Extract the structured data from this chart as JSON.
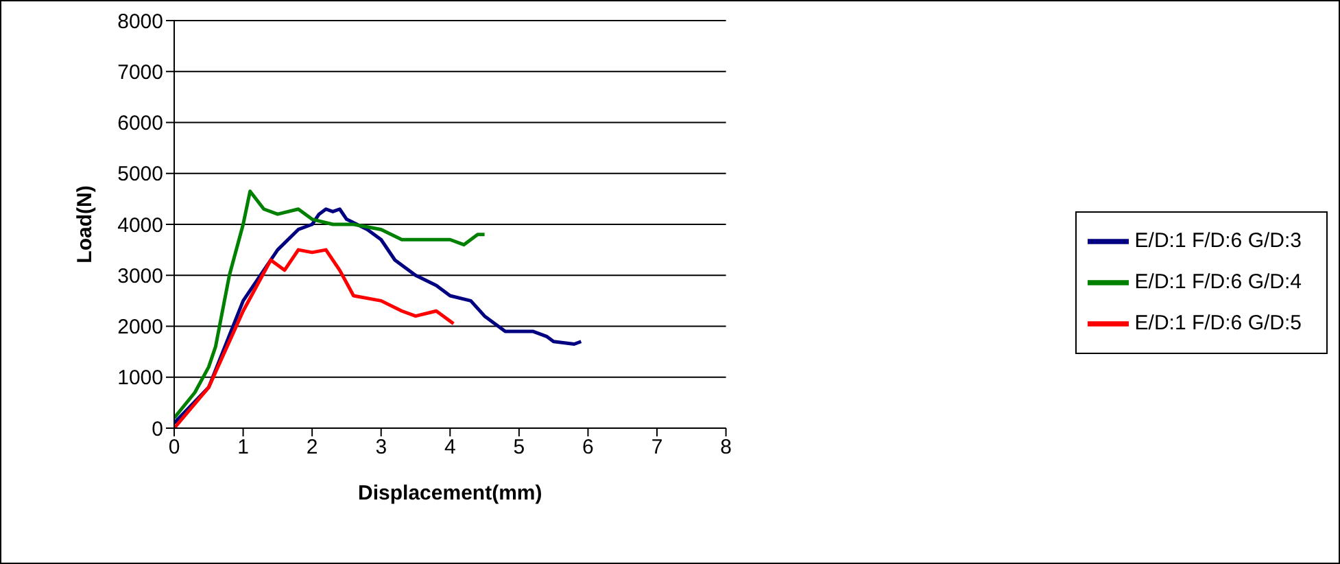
{
  "chart_data": {
    "type": "line",
    "xlabel": "Displacement(mm)",
    "ylabel": "Load(N)",
    "xlim": [
      0,
      8
    ],
    "xticks": [
      0,
      1,
      2,
      3,
      4,
      5,
      6,
      7,
      8
    ],
    "ylim": [
      0,
      8000
    ],
    "yticks": [
      0,
      1000,
      2000,
      3000,
      4000,
      5000,
      6000,
      7000,
      8000
    ],
    "grid": "y",
    "legend": "right",
    "marker": "none",
    "line_style": "solid",
    "series": [
      {
        "name": "E/D:1 F/D:6 G/D:3",
        "color": "#000080",
        "x": [
          0,
          0.5,
          1,
          1.5,
          1.8,
          2,
          2.1,
          2.2,
          2.3,
          2.4,
          2.5,
          2.8,
          3,
          3.2,
          3.5,
          3.8,
          4,
          4.3,
          4.5,
          4.8,
          5,
          5.2,
          5.4,
          5.5,
          5.8,
          5.9
        ],
        "values": [
          100,
          800,
          2500,
          3500,
          3900,
          4000,
          4200,
          4300,
          4250,
          4300,
          4100,
          3900,
          3700,
          3300,
          3000,
          2800,
          2600,
          2500,
          2200,
          1900,
          1900,
          1900,
          1800,
          1700,
          1650,
          1700
        ]
      },
      {
        "name": "E/D:1 F/D:6 G/D:4",
        "color": "#008000",
        "x": [
          0,
          0.3,
          0.5,
          0.6,
          0.8,
          1,
          1.1,
          1.3,
          1.5,
          1.8,
          2,
          2.3,
          2.6,
          3,
          3.3,
          3.6,
          4,
          4.2,
          4.4,
          4.5
        ],
        "values": [
          200,
          700,
          1200,
          1600,
          3000,
          4000,
          4650,
          4300,
          4200,
          4300,
          4100,
          4000,
          4000,
          3900,
          3700,
          3700,
          3700,
          3600,
          3800,
          3800
        ]
      },
      {
        "name": "E/D:1 F/D:6 G/D:5",
        "color": "#ff0000",
        "x": [
          0,
          0.5,
          1,
          1.4,
          1.6,
          1.8,
          2,
          2.2,
          2.4,
          2.6,
          3,
          3.3,
          3.5,
          3.8,
          4,
          4.05
        ],
        "values": [
          0,
          800,
          2300,
          3300,
          3100,
          3500,
          3450,
          3500,
          3100,
          2600,
          2500,
          2300,
          2200,
          2300,
          2100,
          2050
        ]
      }
    ]
  }
}
